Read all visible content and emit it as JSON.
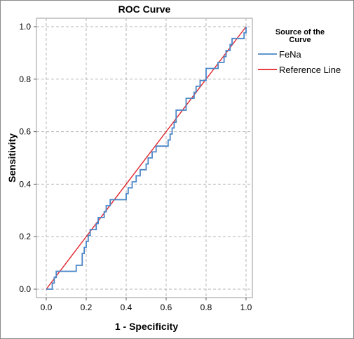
{
  "chart_data": {
    "type": "line",
    "title": "ROC Curve",
    "xlabel": "1 - Specificity",
    "ylabel": "Sensitivity",
    "xlim": [
      0,
      1
    ],
    "ylim": [
      0,
      1
    ],
    "x_ticks": [
      "0.0",
      "0.2",
      "0.4",
      "0.6",
      "0.8",
      "1.0"
    ],
    "y_ticks": [
      "0.0",
      "0.2",
      "0.4",
      "0.6",
      "0.8",
      "1.0"
    ],
    "grid": true,
    "legend": {
      "title_lines": [
        "Source of the",
        "Curve"
      ],
      "position": "right"
    },
    "series": [
      {
        "name": "FeNa",
        "color": "#4a86c8",
        "style": "step",
        "points": [
          [
            0.0,
            0.0
          ],
          [
            0.03,
            0.0
          ],
          [
            0.03,
            0.023
          ],
          [
            0.04,
            0.023
          ],
          [
            0.04,
            0.045
          ],
          [
            0.05,
            0.045
          ],
          [
            0.05,
            0.068
          ],
          [
            0.15,
            0.068
          ],
          [
            0.15,
            0.091
          ],
          [
            0.18,
            0.091
          ],
          [
            0.18,
            0.136
          ],
          [
            0.19,
            0.136
          ],
          [
            0.19,
            0.159
          ],
          [
            0.2,
            0.159
          ],
          [
            0.2,
            0.182
          ],
          [
            0.21,
            0.182
          ],
          [
            0.21,
            0.205
          ],
          [
            0.22,
            0.205
          ],
          [
            0.22,
            0.227
          ],
          [
            0.25,
            0.227
          ],
          [
            0.25,
            0.25
          ],
          [
            0.26,
            0.25
          ],
          [
            0.26,
            0.273
          ],
          [
            0.29,
            0.273
          ],
          [
            0.29,
            0.295
          ],
          [
            0.3,
            0.295
          ],
          [
            0.3,
            0.318
          ],
          [
            0.32,
            0.318
          ],
          [
            0.32,
            0.341
          ],
          [
            0.4,
            0.341
          ],
          [
            0.4,
            0.364
          ],
          [
            0.41,
            0.364
          ],
          [
            0.41,
            0.386
          ],
          [
            0.43,
            0.386
          ],
          [
            0.43,
            0.409
          ],
          [
            0.45,
            0.409
          ],
          [
            0.45,
            0.432
          ],
          [
            0.47,
            0.432
          ],
          [
            0.47,
            0.455
          ],
          [
            0.5,
            0.455
          ],
          [
            0.5,
            0.477
          ],
          [
            0.51,
            0.477
          ],
          [
            0.51,
            0.5
          ],
          [
            0.53,
            0.5
          ],
          [
            0.53,
            0.523
          ],
          [
            0.55,
            0.523
          ],
          [
            0.55,
            0.545
          ],
          [
            0.61,
            0.545
          ],
          [
            0.61,
            0.568
          ],
          [
            0.62,
            0.568
          ],
          [
            0.62,
            0.591
          ],
          [
            0.63,
            0.591
          ],
          [
            0.63,
            0.614
          ],
          [
            0.64,
            0.614
          ],
          [
            0.64,
            0.636
          ],
          [
            0.65,
            0.636
          ],
          [
            0.65,
            0.682
          ],
          [
            0.7,
            0.682
          ],
          [
            0.7,
            0.727
          ],
          [
            0.74,
            0.727
          ],
          [
            0.74,
            0.75
          ],
          [
            0.75,
            0.75
          ],
          [
            0.75,
            0.773
          ],
          [
            0.77,
            0.773
          ],
          [
            0.77,
            0.795
          ],
          [
            0.8,
            0.795
          ],
          [
            0.8,
            0.841
          ],
          [
            0.86,
            0.841
          ],
          [
            0.86,
            0.864
          ],
          [
            0.89,
            0.864
          ],
          [
            0.89,
            0.886
          ],
          [
            0.9,
            0.886
          ],
          [
            0.9,
            0.909
          ],
          [
            0.92,
            0.909
          ],
          [
            0.92,
            0.932
          ],
          [
            0.93,
            0.932
          ],
          [
            0.93,
            0.955
          ],
          [
            0.99,
            0.955
          ],
          [
            0.99,
            0.977
          ],
          [
            1.0,
            0.977
          ],
          [
            1.0,
            1.0
          ]
        ]
      },
      {
        "name": "Reference Line",
        "color": "#e0252b",
        "style": "line",
        "points": [
          [
            0.0,
            0.0
          ],
          [
            1.0,
            1.0
          ]
        ]
      }
    ]
  }
}
